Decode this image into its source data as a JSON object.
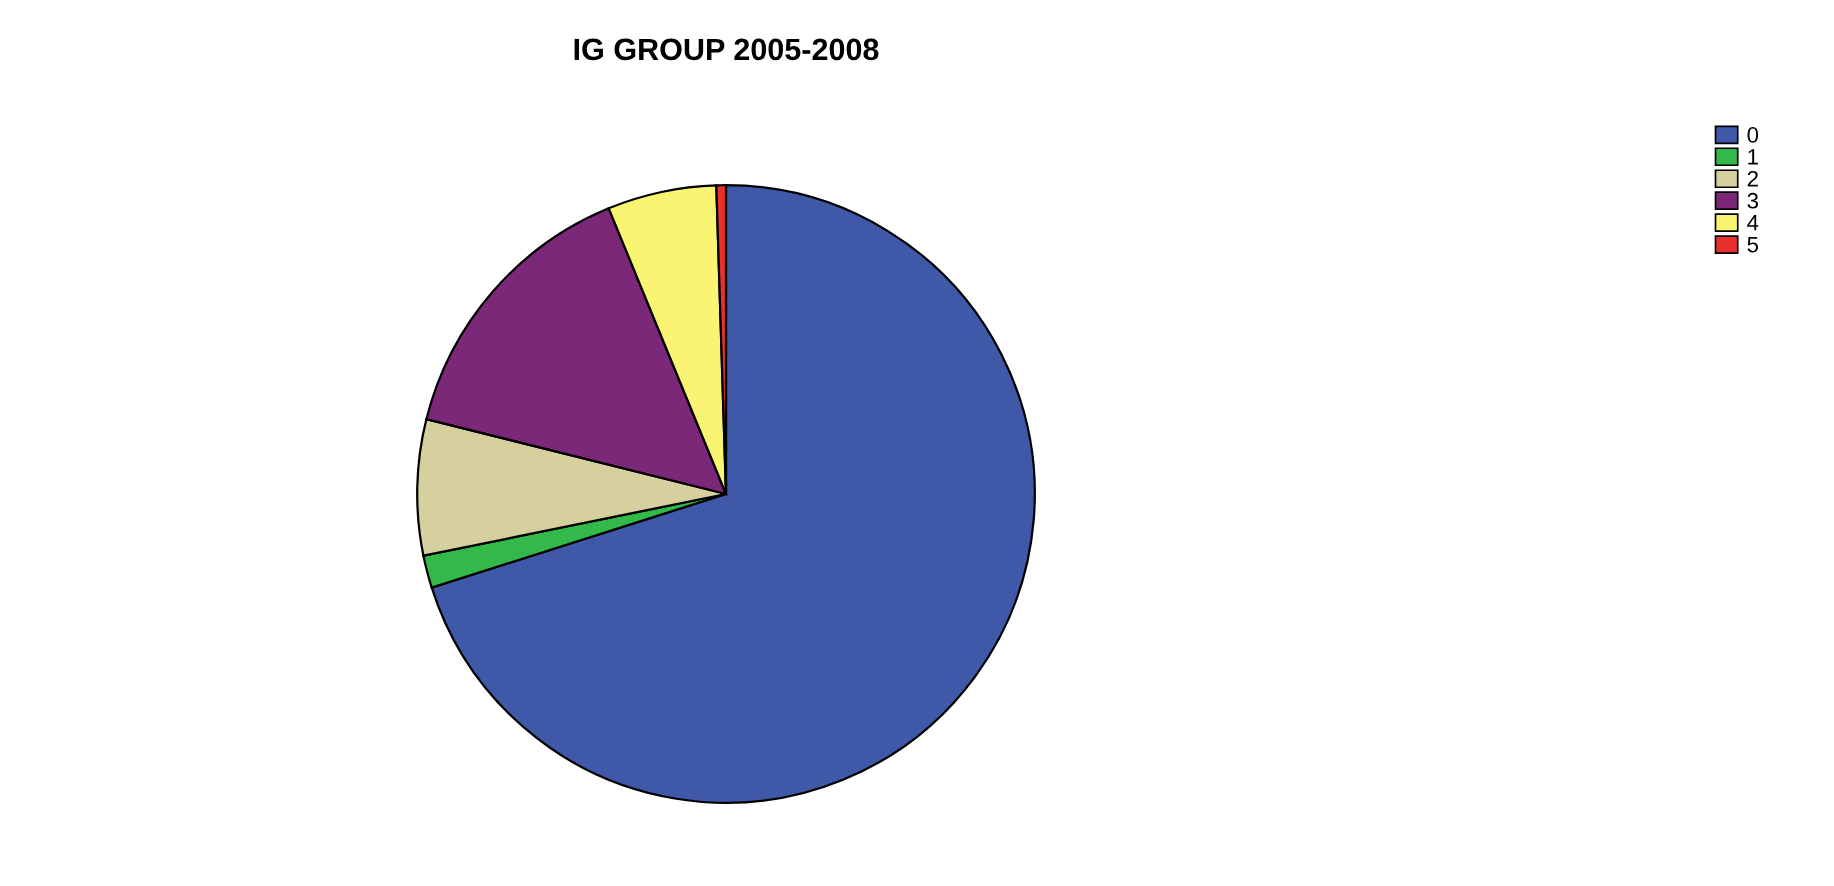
{
  "chart_data": {
    "type": "pie",
    "title": "IG GROUP 2005-2008",
    "categories": [
      "0",
      "1",
      "2",
      "3",
      "4",
      "5"
    ],
    "values": [
      70.1,
      1.7,
      7.1,
      14.9,
      5.7,
      0.5
    ],
    "colors": [
      "#3f58a8",
      "#33b84a",
      "#d6d09e",
      "#7b2878",
      "#f9f471",
      "#e8302f"
    ],
    "legend": "top right"
  }
}
